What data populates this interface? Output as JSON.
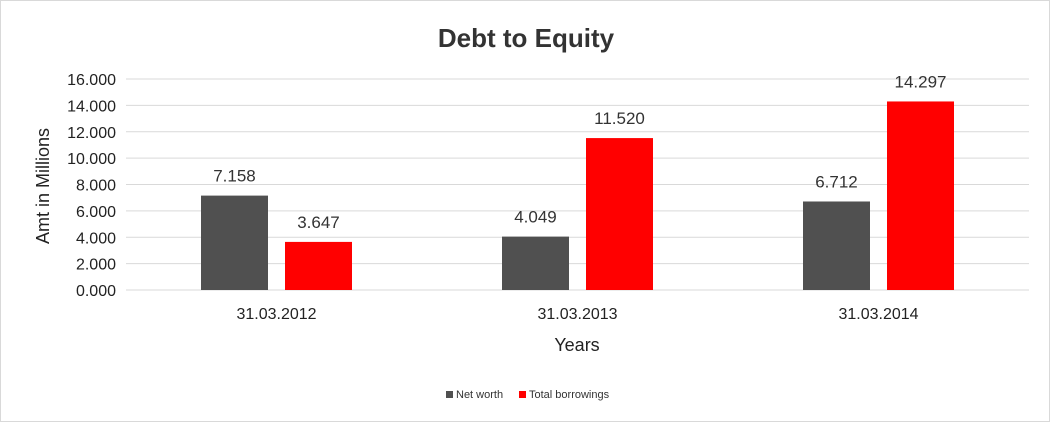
{
  "chart_data": {
    "type": "bar",
    "title": "Debt to Equity",
    "xlabel": "Years",
    "ylabel": "Amt in Millions",
    "categories": [
      "31.03.2012",
      "31.03.2013",
      "31.03.2014"
    ],
    "series": [
      {
        "name": "Net worth",
        "values": [
          7.158,
          4.049,
          6.712
        ],
        "labels": [
          "7.158",
          "4.049",
          "6.712"
        ],
        "color": "#505050"
      },
      {
        "name": "Total borrowings",
        "values": [
          3.647,
          11.52,
          14.297
        ],
        "labels": [
          "3.647",
          "11.520",
          "14.297"
        ],
        "color": "#ff0000"
      }
    ],
    "ylim": [
      0,
      16
    ],
    "yticks": [
      0,
      2,
      4,
      6,
      8,
      10,
      12,
      14,
      16
    ],
    "ytick_labels": [
      "0.000",
      "2.000",
      "4.000",
      "6.000",
      "8.000",
      "10.000",
      "12.000",
      "14.000",
      "16.000"
    ],
    "grid": true,
    "gridline_color": "#d9d9d9",
    "legend_position": "bottom"
  }
}
